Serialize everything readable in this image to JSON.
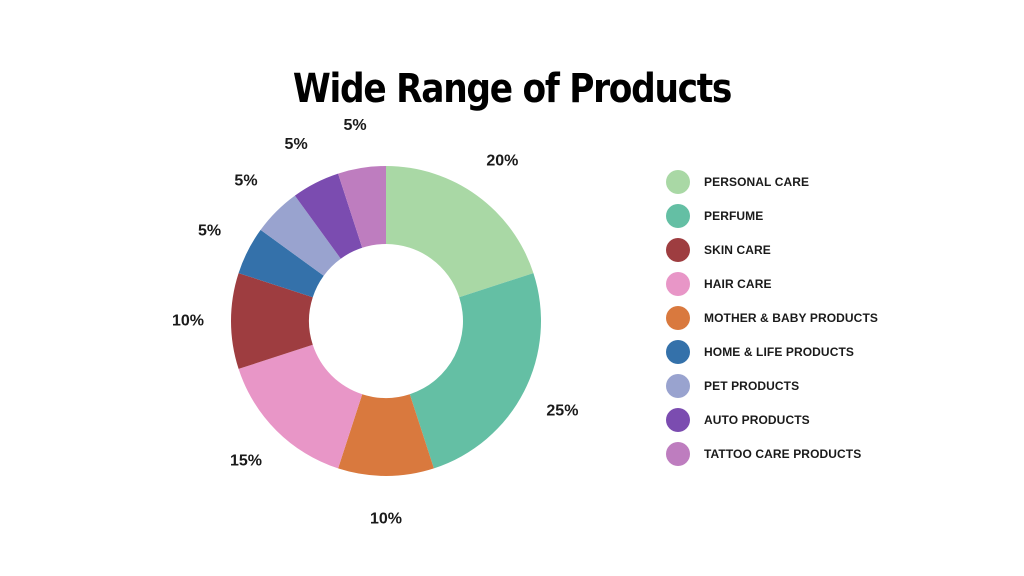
{
  "chart_data": {
    "type": "pie",
    "donut": true,
    "title": "Wide Range of Products",
    "categories": [
      "PERSONAL CARE",
      "PERFUME",
      "MOTHER & BABY PRODUCTS",
      "HAIR CARE",
      "SKIN CARE",
      "HOME & LIFE PRODUCTS",
      "PET PRODUCTS",
      "AUTO PRODUCTS",
      "TATTOO CARE PRODUCTS"
    ],
    "values": [
      20,
      25,
      10,
      15,
      10,
      5,
      5,
      5,
      5
    ],
    "value_labels": [
      "20%",
      "25%",
      "10%",
      "15%",
      "10%",
      "5%",
      "5%",
      "5%",
      "5%"
    ],
    "colors": [
      "#a9d8a5",
      "#64bfa4",
      "#d9793e",
      "#e896c7",
      "#9e3d40",
      "#3471aa",
      "#99a3cf",
      "#7b4cb0",
      "#be7dbf"
    ],
    "start_angle": "12 o'clock",
    "direction": "clockwise",
    "legend_position": "right",
    "legend": [
      {
        "label": "PERSONAL CARE",
        "color": "#a9d8a5"
      },
      {
        "label": "PERFUME",
        "color": "#64bfa4"
      },
      {
        "label": "SKIN CARE",
        "color": "#9e3d40"
      },
      {
        "label": "HAIR CARE",
        "color": "#e896c7"
      },
      {
        "label": "MOTHER & BABY PRODUCTS",
        "color": "#d9793e"
      },
      {
        "label": "HOME & LIFE PRODUCTS",
        "color": "#3471aa"
      },
      {
        "label": "PET PRODUCTS",
        "color": "#99a3cf"
      },
      {
        "label": "AUTO PRODUCTS",
        "color": "#7b4cb0"
      },
      {
        "label": "TATTOO CARE PRODUCTS",
        "color": "#be7dbf"
      }
    ]
  }
}
